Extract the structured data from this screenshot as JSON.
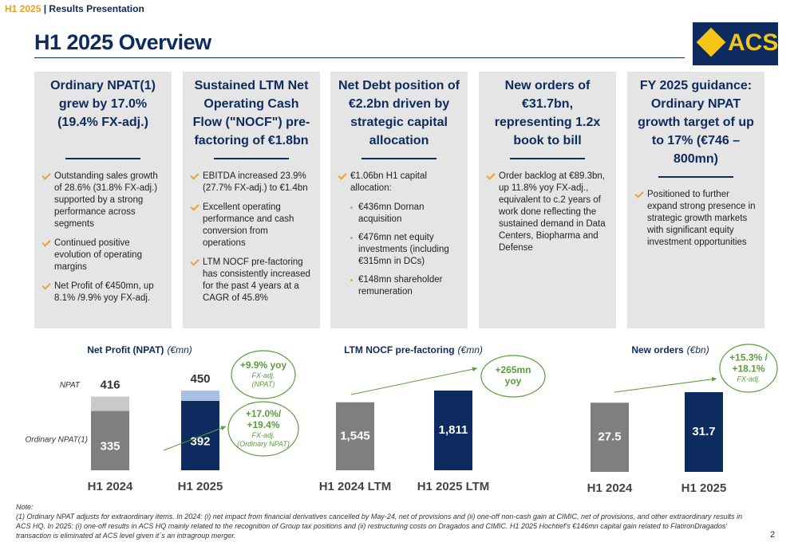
{
  "header": {
    "period": "H1 2025",
    "label": "| Results Presentation"
  },
  "title": "H1 2025 Overview",
  "logo": "ACS",
  "cards": [
    {
      "title": "Ordinary NPAT(1) grew by 17.0% (19.4% FX-adj.)",
      "bullets": [
        "Outstanding sales growth of 28.6% (31.8% FX-adj.) supported by a strong performance across segments",
        "Continued positive evolution of operating margins",
        "Net Profit of €450mn, up 8.1% /9.9% yoy FX-adj."
      ]
    },
    {
      "title": "Sustained LTM Net Operating Cash Flow (\"NOCF\") pre-factoring of €1.8bn",
      "bullets": [
        "EBITDA increased 23.9% (27.7% FX-adj.) to €1.4bn",
        "Excellent operating performance and cash conversion from operations",
        "LTM NOCF pre-factoring has consistently increased for the past 4 years at a CAGR of 45.8%"
      ]
    },
    {
      "title": "Net Debt position of €2.2bn driven by strategic capital allocation",
      "bullets": [
        "€1.06bn H1 capital allocation:"
      ],
      "sub_bullets": [
        "€436mn Dornan acquisition",
        "€476mn net equity investments (including €315mn in DCs)",
        "€148mn shareholder remuneration"
      ]
    },
    {
      "title": "New orders of €31.7bn, representing 1.2x book to bill",
      "bullets": [
        "Order backlog at €89.3bn, up 11.8% yoy FX-adj., equivalent to c.2 years of work done reflecting the sustained demand in Data Centers, Biopharma and Defense"
      ]
    },
    {
      "title": "FY 2025 guidance: Ordinary NPAT growth target of up to 17% (€746 – 800mn)",
      "bullets": [
        "Positioned to further expand strong presence in strategic growth markets with significant equity investment opportunities"
      ]
    }
  ],
  "chart_data": [
    {
      "type": "bar",
      "title": "Net Profit (NPAT)",
      "unit": "(€mn)",
      "categories": [
        "H1 2024",
        "H1 2025"
      ],
      "series": [
        {
          "name": "Ordinary NPAT(1)",
          "values": [
            335,
            392
          ],
          "colors": [
            "#7f7f7f",
            "#0d2b5e"
          ]
        },
        {
          "values": [
            81,
            58
          ],
          "colors": [
            "#c9c9c9",
            "#a9bfe4"
          ]
        }
      ],
      "totals": {
        "name": "NPAT",
        "values": [
          416,
          450
        ]
      },
      "annotations": [
        {
          "headline": [
            "+9.9% yoy"
          ],
          "notes": [
            "FX-adj.",
            "(NPAT)"
          ]
        },
        {
          "headline": [
            "+17.0%/",
            "+19.4%"
          ],
          "notes": [
            "FX-adj.",
            "(Ordinary NPAT)"
          ]
        }
      ]
    },
    {
      "type": "bar",
      "title": "LTM NOCF pre-factoring",
      "unit": "(€mn)",
      "categories": [
        "H1 2024 LTM",
        "H1 2025 LTM"
      ],
      "series": [
        {
          "values": [
            1545,
            1811
          ],
          "value_labels": [
            "1,545",
            "1,811"
          ],
          "colors": [
            "#7f7f7f",
            "#0d2b5e"
          ]
        }
      ],
      "annotations": [
        {
          "headline": [
            "+265mn",
            "yoy"
          ],
          "notes": []
        }
      ]
    },
    {
      "type": "bar",
      "title": "New orders",
      "unit": "(€bn)",
      "categories": [
        "H1 2024",
        "H1 2025"
      ],
      "series": [
        {
          "values": [
            27.5,
            31.7
          ],
          "colors": [
            "#7f7f7f",
            "#0d2b5e"
          ]
        }
      ],
      "annotations": [
        {
          "headline": [
            "+15.3% /",
            "+18.1%"
          ],
          "notes": [
            "FX-adj."
          ]
        }
      ]
    }
  ],
  "note": {
    "label": "Note:",
    "text": "(1) Ordinary NPAT adjusts for extraordinary items. In 2024: (i) net impact from financial derivatives cancelled by May-24, net of provisions and (ii) one-off non-cash gain at CIMIC, net of provisions, and other extraordinary results in ACS HQ. In 2025: (i) one-off results in ACS HQ mainly related to the recognition of Group tax positions and (ii) restructuring costs on Dragados and CIMIC. H1 2025 Hochtief's €146mn capital gain related to FlatironDragados' transaction is eliminated at ACS level given it´s an intragroup merger."
  },
  "page_number": "2"
}
